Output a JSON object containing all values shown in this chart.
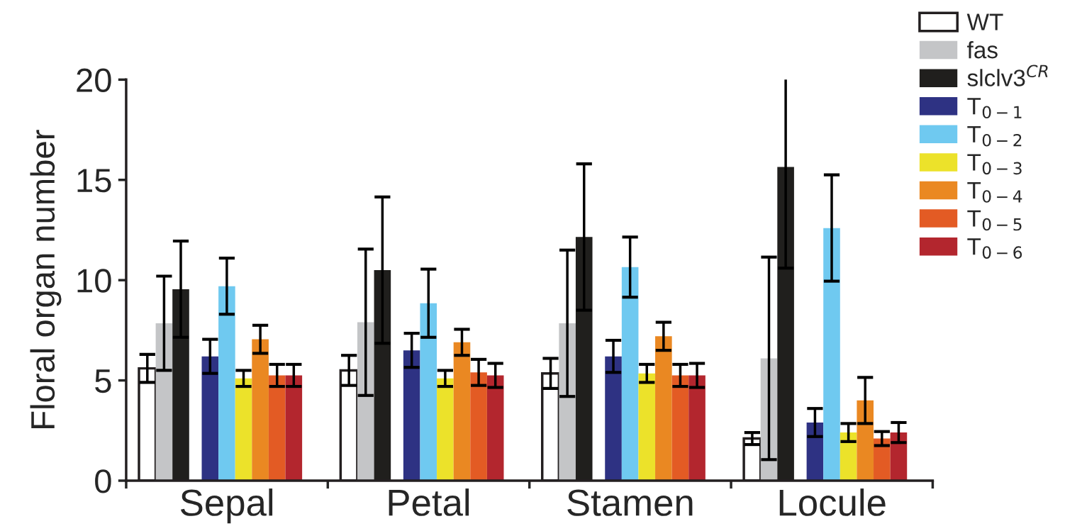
{
  "chart_data": {
    "type": "bar",
    "ylabel": "Floral organ number",
    "categories": [
      "Sepal",
      "Petal",
      "Stamen",
      "Locule"
    ],
    "ylim": [
      0,
      20
    ],
    "yticks": [
      0,
      5,
      10,
      15,
      20
    ],
    "grid": false,
    "legend": "top right",
    "series": [
      {
        "name": "WT",
        "color": "#ffffff",
        "values": [
          5.6,
          5.5,
          5.35,
          2.1
        ],
        "errors": [
          0.7,
          0.75,
          0.75,
          0.3
        ]
      },
      {
        "name": "fas",
        "color": "#c4c5c7",
        "values": [
          7.85,
          7.9,
          7.85,
          6.1
        ],
        "errors": [
          2.35,
          3.65,
          3.65,
          5.05
        ]
      },
      {
        "name": "slclv3$^{CR}$",
        "color": "#201f1d",
        "values": [
          9.55,
          10.5,
          12.15,
          15.65
        ],
        "errors": [
          2.4,
          3.65,
          3.65,
          5.05
        ]
      },
      {
        "name": "T$_{0−1}$",
        "color": "#2e3283",
        "values": [
          6.2,
          6.5,
          6.2,
          2.9
        ],
        "errors": [
          0.85,
          0.85,
          0.8,
          0.7
        ]
      },
      {
        "name": "T$_{0−2}$",
        "color": "#6fc9f0",
        "values": [
          9.7,
          8.85,
          10.65,
          12.6
        ],
        "errors": [
          1.4,
          1.7,
          1.5,
          2.65
        ]
      },
      {
        "name": "T$_{0−3}$",
        "color": "#ece22a",
        "values": [
          5.1,
          5.1,
          5.35,
          2.4
        ],
        "errors": [
          0.4,
          0.4,
          0.45,
          0.45
        ]
      },
      {
        "name": "T$_{0−4}$",
        "color": "#ea8822",
        "values": [
          7.05,
          6.9,
          7.2,
          4.0
        ],
        "errors": [
          0.7,
          0.65,
          0.7,
          1.15
        ]
      },
      {
        "name": "T$_{0−5}$",
        "color": "#e35b24",
        "values": [
          5.25,
          5.4,
          5.25,
          2.1
        ],
        "errors": [
          0.55,
          0.65,
          0.55,
          0.35
        ]
      },
      {
        "name": "T$_{0−6}$",
        "color": "#b3262e",
        "values": [
          5.25,
          5.25,
          5.25,
          2.4
        ],
        "errors": [
          0.55,
          0.6,
          0.6,
          0.5
        ]
      }
    ]
  }
}
